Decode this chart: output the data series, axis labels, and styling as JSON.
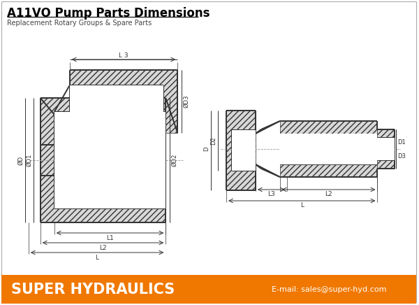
{
  "title": "A11VO Pump Parts Dimensions",
  "subtitle": "Replacement Rotary Groups & Spare Parts",
  "footer_bg": "#F07800",
  "footer_text": "SUPER HYDRAULICS",
  "footer_email": "E-mail: sales@super-hyd.com",
  "bg_color": "#FFFFFF",
  "line_color": "#333333",
  "dim_color": "#333333",
  "hatch_face": "#D8D8D8",
  "title_color": "#000000",
  "footer_text_color": "#FFFFFF",
  "lw_main": 1.4,
  "lw_dim": 0.7,
  "lw_ext": 0.5
}
